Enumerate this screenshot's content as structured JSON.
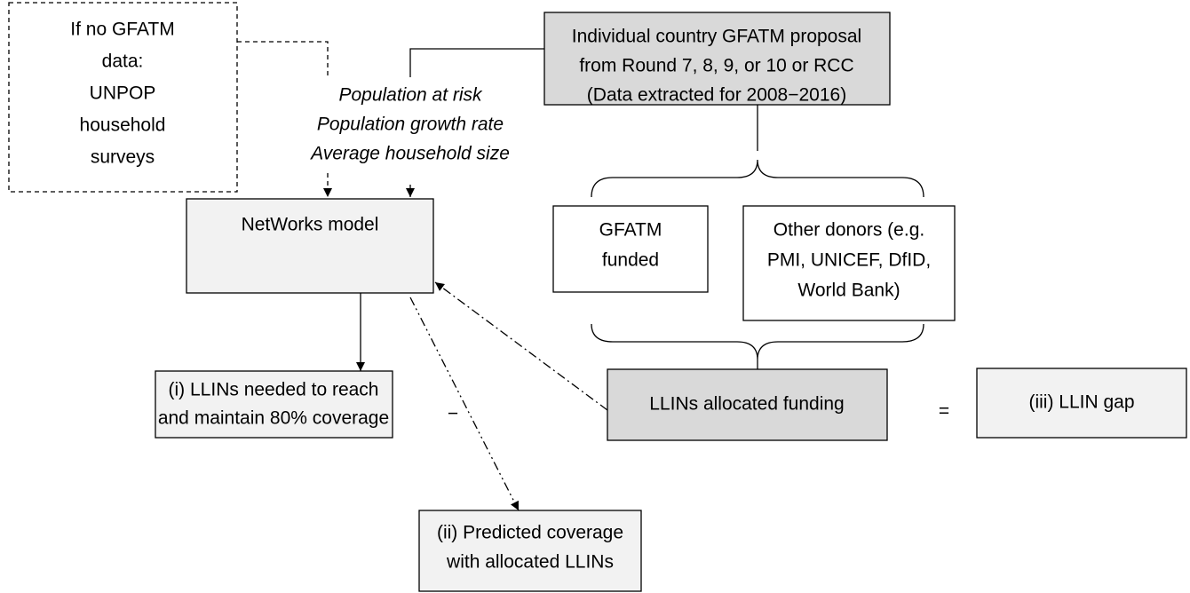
{
  "nodes": [
    {
      "id": "data-source",
      "lines": [
        "If no GFATM",
        "data:",
        "UNPOP",
        "household",
        "surveys"
      ]
    },
    {
      "id": "inputs",
      "lines": [
        "Population at risk",
        "Population growth rate",
        "Average household size"
      ]
    },
    {
      "id": "proposal",
      "lines": [
        "Individual country GFATM proposal",
        "from Round 7, 8, 9, or 10 or RCC",
        "(Data extracted for 2008−2016)"
      ]
    },
    {
      "id": "model",
      "lines": [
        "NetWorks model"
      ]
    },
    {
      "id": "gfatm",
      "lines": [
        "GFATM",
        "funded"
      ]
    },
    {
      "id": "donors",
      "lines": [
        "Other donors (e.g.",
        "PMI, UNICEF, DfID,",
        "World Bank)"
      ]
    },
    {
      "id": "needed",
      "lines": [
        "(i) LLINs needed to reach",
        "and maintain 80% coverage"
      ]
    },
    {
      "id": "minus",
      "lines": [
        "−"
      ]
    },
    {
      "id": "allocated",
      "lines": [
        "LLINs allocated funding"
      ]
    },
    {
      "id": "equals",
      "lines": [
        "="
      ]
    },
    {
      "id": "gap",
      "lines": [
        "(iii) LLIN gap"
      ]
    },
    {
      "id": "predicted",
      "lines": [
        "(ii) Predicted coverage",
        "with allocated LLINs"
      ]
    }
  ]
}
